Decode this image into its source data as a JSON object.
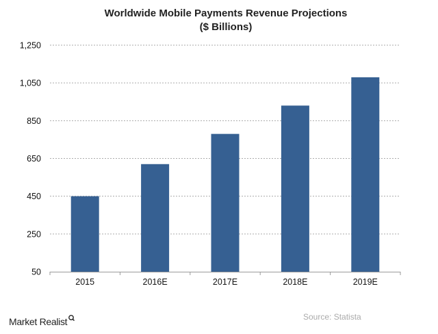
{
  "chart_data": {
    "type": "bar",
    "title": "Worldwide Mobile Payments Revenue Projections",
    "subtitle": "($ Billions)",
    "categories": [
      "2015",
      "2016E",
      "2017E",
      "2018E",
      "2019E"
    ],
    "values": [
      450,
      620,
      780,
      930,
      1080
    ],
    "ylim": [
      50,
      1250
    ],
    "yticks": [
      50,
      250,
      450,
      650,
      850,
      1050,
      1250
    ],
    "ytick_labels": [
      "50",
      "250",
      "450",
      "650",
      "850",
      "1,050",
      "1,250"
    ],
    "xlabel": "",
    "ylabel": "",
    "grid": "horizontal dotted",
    "bar_color": "#366092"
  },
  "footer": {
    "logo": "Market Realist",
    "source": "Source:  Statista"
  }
}
